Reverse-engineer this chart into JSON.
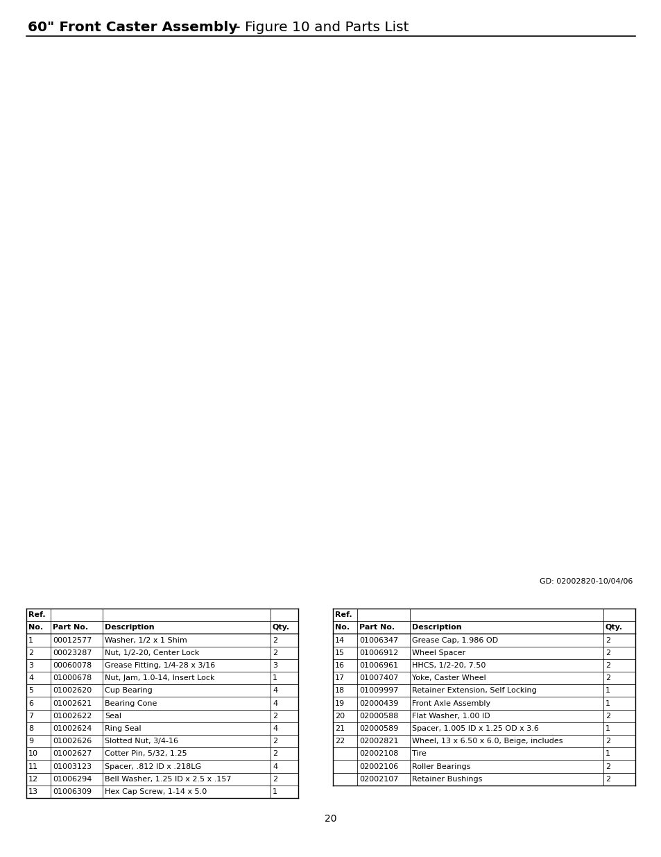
{
  "title_bold": "60\" Front Caster Assembly",
  "title_regular": " - Figure 10 and Parts List",
  "gd_text": "GD: 02002820-10/04/06",
  "page_number": "20",
  "background_color": "#ffffff",
  "title_fontsize": 14.5,
  "table_data_left": [
    [
      "1",
      "00012577",
      "Washer, 1/2 x 1 Shim",
      "2"
    ],
    [
      "2",
      "00023287",
      "Nut, 1/2-20, Center Lock",
      "2"
    ],
    [
      "3",
      "00060078",
      "Grease Fitting, 1/4-28 x 3/16",
      "3"
    ],
    [
      "4",
      "01000678",
      "Nut, Jam, 1.0-14, Insert Lock",
      "1"
    ],
    [
      "5",
      "01002620",
      "Cup Bearing",
      "4"
    ],
    [
      "6",
      "01002621",
      "Bearing Cone",
      "4"
    ],
    [
      "7",
      "01002622",
      "Seal",
      "2"
    ],
    [
      "8",
      "01002624",
      "Ring Seal",
      "4"
    ],
    [
      "9",
      "01002626",
      "Slotted Nut, 3/4-16",
      "2"
    ],
    [
      "10",
      "01002627",
      "Cotter Pin, 5/32, 1.25",
      "2"
    ],
    [
      "11",
      "01003123",
      "Spacer, .812 ID x .218LG",
      "4"
    ],
    [
      "12",
      "01006294",
      "Bell Washer, 1.25 ID x 2.5 x .157",
      "2"
    ],
    [
      "13",
      "01006309",
      "Hex Cap Screw, 1-14 x 5.0",
      "1"
    ]
  ],
  "table_data_right": [
    [
      "14",
      "01006347",
      "Grease Cap, 1.986 OD",
      "2"
    ],
    [
      "15",
      "01006912",
      "Wheel Spacer",
      "2"
    ],
    [
      "16",
      "01006961",
      "HHCS, 1/2-20, 7.50",
      "2"
    ],
    [
      "17",
      "01007407",
      "Yoke, Caster Wheel",
      "2"
    ],
    [
      "18",
      "01009997",
      "Retainer Extension, Self Locking",
      "1"
    ],
    [
      "19",
      "02000439",
      "Front Axle Assembly",
      "1"
    ],
    [
      "20",
      "02000588",
      "Flat Washer, 1.00 ID",
      "2"
    ],
    [
      "21",
      "02000589",
      "Spacer, 1.005 ID x 1.25 OD x 3.6",
      "1"
    ],
    [
      "22",
      "02002821",
      "Wheel, 13 x 6.50 x 6.0, Beige, includes",
      "2"
    ],
    [
      "",
      "02002108",
      "Tire",
      "1"
    ],
    [
      "",
      "02002106",
      "Roller Bearings",
      "2"
    ],
    [
      "",
      "02002107",
      "Retainer Bushings",
      "2"
    ]
  ]
}
